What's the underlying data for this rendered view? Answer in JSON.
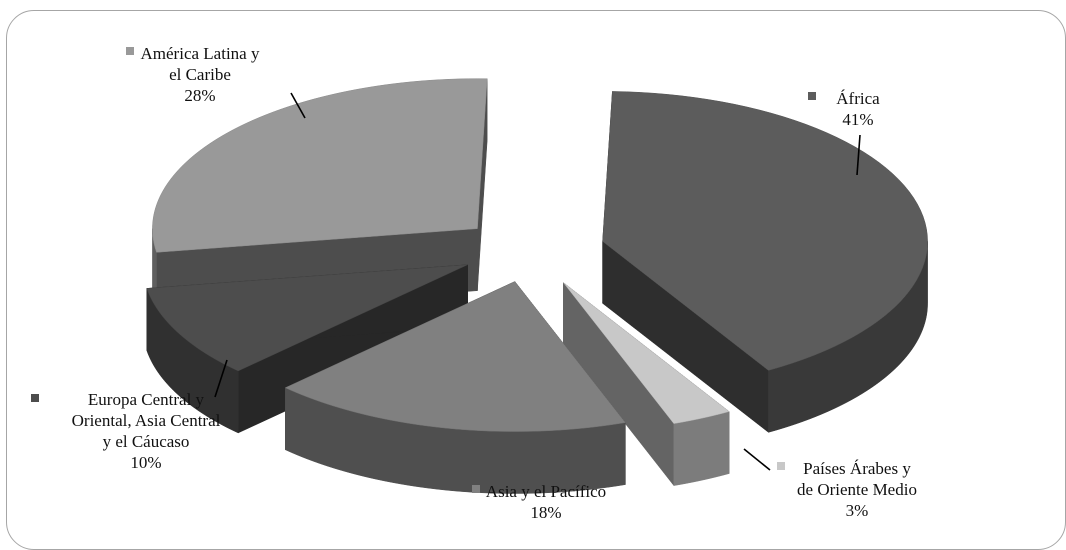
{
  "chart_data": {
    "type": "pie",
    "style": "3d-exploded",
    "slices": [
      {
        "name": "África",
        "label_lines": [
          "África",
          "41%"
        ],
        "value": 41,
        "color": "#5c5c5c"
      },
      {
        "name": "Países Árabes y de Oriente Medio",
        "label_lines": [
          "Países Árabes y",
          "de Oriente Medio",
          "3%"
        ],
        "value": 3,
        "color": "#c8c8c8"
      },
      {
        "name": "Asia y el Pacífico",
        "label_lines": [
          "Asia y el Pacífico",
          "18%"
        ],
        "value": 18,
        "color": "#808080"
      },
      {
        "name": "Europa Central y Oriental, Asia Central y el Cáucaso",
        "label_lines": [
          "Europa Central y",
          "Oriental, Asia Central",
          "y el Cáucaso",
          "10%"
        ],
        "value": 10,
        "color": "#4d4d4d"
      },
      {
        "name": "América Latina y el Caribe",
        "label_lines": [
          "América Latina y",
          "el Caribe",
          "28%"
        ],
        "value": 28,
        "color": "#999999"
      }
    ],
    "legend": "none",
    "title": ""
  }
}
